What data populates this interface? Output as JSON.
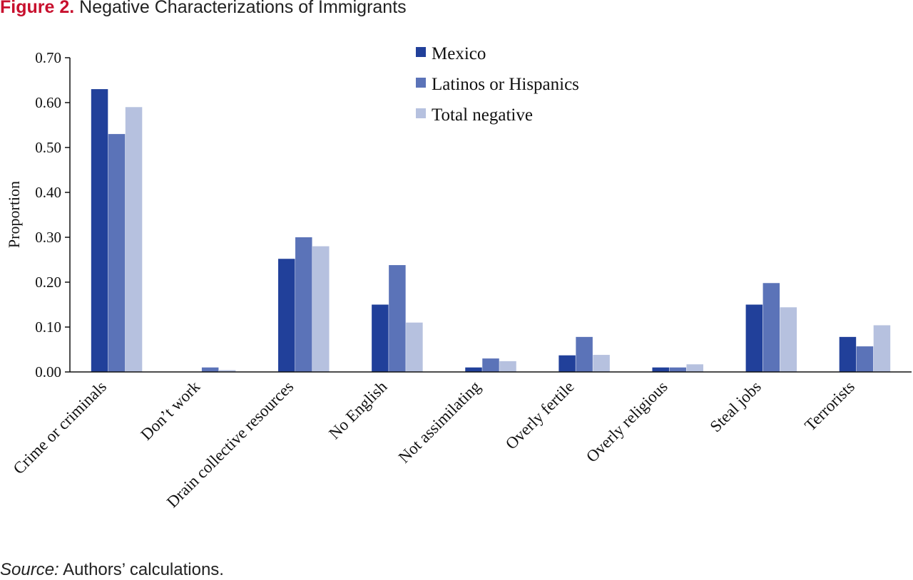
{
  "figure": {
    "label": "Figure 2.",
    "title": "Negative Characterizations of Immigrants",
    "source_label": "Source:",
    "source_text": "Authors’ calculations."
  },
  "chart_data": {
    "type": "bar",
    "title": "Negative Characterizations of Immigrants",
    "xlabel": "",
    "ylabel": "Proportion",
    "ylim": [
      0,
      0.7
    ],
    "yticks": [
      "0.00",
      "0.10",
      "0.20",
      "0.30",
      "0.40",
      "0.50",
      "0.60",
      "0.70"
    ],
    "grid": false,
    "legend_position": "top-center",
    "categories": [
      "Crime or criminals",
      "Don’t work",
      "Drain collective resources",
      "No English",
      "Not assimilating",
      "Overly fertile",
      "Overly religious",
      "Steal jobs",
      "Terrorists"
    ],
    "series": [
      {
        "name": "Mexico",
        "color": "#21409a",
        "values": [
          0.63,
          0.0,
          0.252,
          0.15,
          0.01,
          0.037,
          0.01,
          0.15,
          0.078
        ]
      },
      {
        "name": "Latinos or Hispanics",
        "color": "#5b73b8",
        "values": [
          0.53,
          0.01,
          0.3,
          0.238,
          0.03,
          0.078,
          0.01,
          0.198,
          0.057
        ]
      },
      {
        "name": "Total negative",
        "color": "#b6c1df",
        "values": [
          0.59,
          0.004,
          0.28,
          0.11,
          0.024,
          0.038,
          0.017,
          0.144,
          0.104
        ]
      }
    ]
  }
}
